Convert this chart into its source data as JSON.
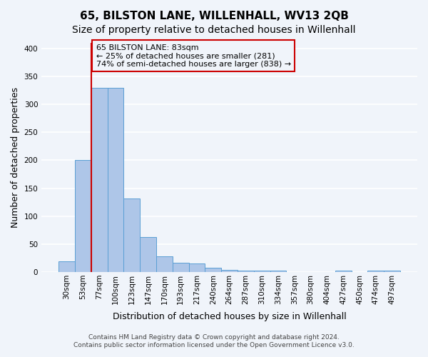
{
  "title": "65, BILSTON LANE, WILLENHALL, WV13 2QB",
  "subtitle": "Size of property relative to detached houses in Willenhall",
  "xlabel": "Distribution of detached houses by size in Willenhall",
  "ylabel": "Number of detached properties",
  "bar_values": [
    19,
    201,
    330,
    330,
    131,
    62,
    28,
    16,
    15,
    8,
    4,
    3,
    3,
    3,
    0,
    0,
    0,
    3,
    0,
    3,
    3
  ],
  "bin_labels": [
    "30sqm",
    "53sqm",
    "77sqm",
    "100sqm",
    "123sqm",
    "147sqm",
    "170sqm",
    "193sqm",
    "217sqm",
    "240sqm",
    "264sqm",
    "287sqm",
    "310sqm",
    "334sqm",
    "357sqm",
    "380sqm",
    "404sqm",
    "427sqm",
    "450sqm",
    "474sqm",
    "497sqm"
  ],
  "bar_color": "#aec6e8",
  "bar_edge_color": "#5a9fd4",
  "vline_x_index": 2,
  "vline_color": "#cc0000",
  "annotation_title": "65 BILSTON LANE: 83sqm",
  "annotation_line1": "← 25% of detached houses are smaller (281)",
  "annotation_line2": "74% of semi-detached houses are larger (838) →",
  "annotation_box_edge": "#cc0000",
  "ylim": [
    0,
    410
  ],
  "yticks": [
    0,
    50,
    100,
    150,
    200,
    250,
    300,
    350,
    400
  ],
  "footer1": "Contains HM Land Registry data © Crown copyright and database right 2024.",
  "footer2": "Contains public sector information licensed under the Open Government Licence v3.0.",
  "background_color": "#f0f4fa",
  "grid_color": "#ffffff",
  "title_fontsize": 11,
  "subtitle_fontsize": 10,
  "axis_fontsize": 9,
  "tick_fontsize": 7.5
}
